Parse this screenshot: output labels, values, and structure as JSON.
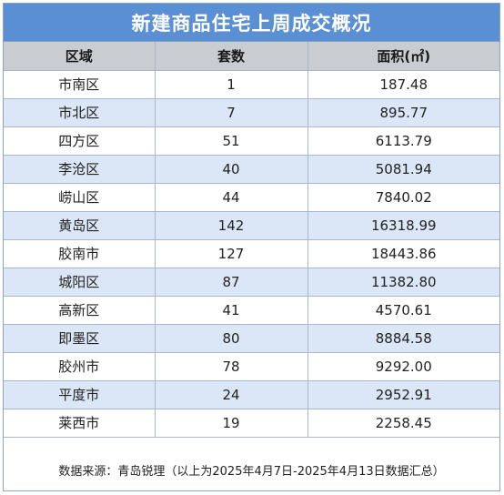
{
  "title": "新建商品住宅上周成交概况",
  "table": {
    "headers": [
      "区域",
      "套数",
      "面积(㎡)"
    ],
    "rows": [
      [
        "市南区",
        "1",
        "187.48"
      ],
      [
        "市北区",
        "7",
        "895.77"
      ],
      [
        "四方区",
        "51",
        "6113.79"
      ],
      [
        "李沧区",
        "40",
        "5081.94"
      ],
      [
        "崂山区",
        "44",
        "7840.02"
      ],
      [
        "黄岛区",
        "142",
        "16318.99"
      ],
      [
        "胶南市",
        "127",
        "18443.86"
      ],
      [
        "城阳区",
        "87",
        "11382.80"
      ],
      [
        "高新区",
        "41",
        "4570.61"
      ],
      [
        "即墨区",
        "80",
        "8884.58"
      ],
      [
        "胶州市",
        "78",
        "9292.00"
      ],
      [
        "平度市",
        "24",
        "2952.91"
      ],
      [
        "莱西市",
        "19",
        "2258.45"
      ]
    ]
  },
  "footer": "数据来源：青岛锐理（以上为2025年4月7日-2025年4月13日数据汇总）",
  "colors": {
    "title_bg": "#5b8fd3",
    "header_bg": "#c9ccd1",
    "stripe_bg": "#dbe7f6"
  }
}
